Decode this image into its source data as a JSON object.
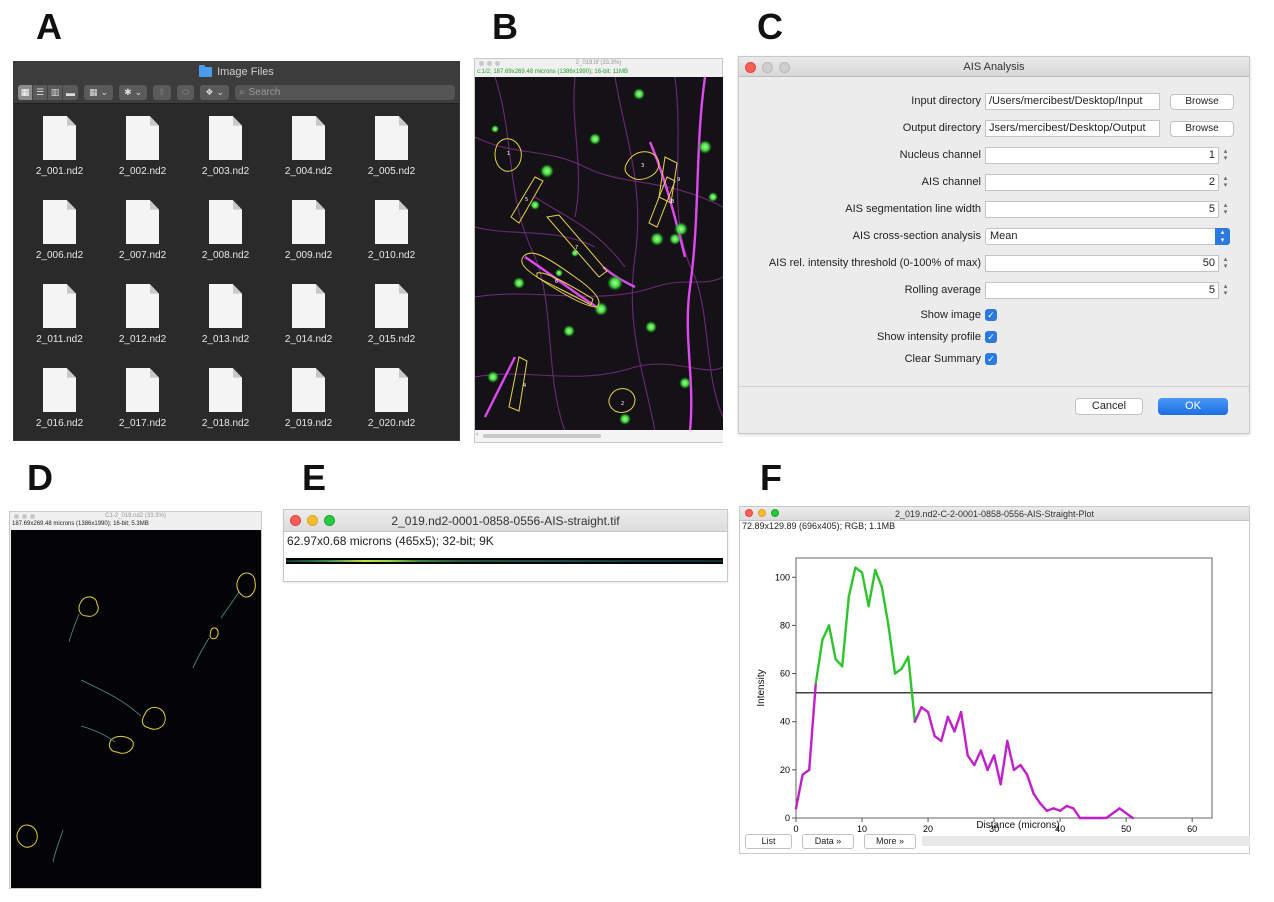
{
  "panel_letters": [
    "A",
    "B",
    "C",
    "D",
    "E",
    "F"
  ],
  "panel_a": {
    "window_title": "Image Files",
    "search_placeholder": "Search",
    "files": [
      "2_001.nd2",
      "2_002.nd2",
      "2_003.nd2",
      "2_004.nd2",
      "2_005.nd2",
      "2_006.nd2",
      "2_007.nd2",
      "2_008.nd2",
      "2_009.nd2",
      "2_010.nd2",
      "2_011.nd2",
      "2_012.nd2",
      "2_013.nd2",
      "2_014.nd2",
      "2_015.nd2",
      "2_016.nd2",
      "2_017.nd2",
      "2_018.nd2",
      "2_019.nd2",
      "2_020.nd2"
    ]
  },
  "panel_b": {
    "window_title": "2_019.tif (33.3%)",
    "info": "c:1/2; 187.69x269.48 microns (1386x1990); 16-bit; 11MB",
    "roi_labels": [
      "1",
      "2",
      "3",
      "4",
      "5",
      "6",
      "7",
      "8",
      "9"
    ]
  },
  "panel_c": {
    "window_title": "AIS Analysis",
    "input_directory_label": "Input directory",
    "input_directory_value": "/Users/mercibest/Desktop/Input",
    "output_directory_label": "Output directory",
    "output_directory_value": "Jsers/mercibest/Desktop/Output",
    "browse_label": "Browse",
    "nucleus_channel_label": "Nucleus channel",
    "nucleus_channel_value": "1",
    "ais_channel_label": "AIS channel",
    "ais_channel_value": "2",
    "line_width_label": "AIS segmentation line width",
    "line_width_value": "5",
    "cross_section_label": "AIS cross-section analysis",
    "cross_section_value": "Mean",
    "threshold_label": "AIS rel. intensity threshold (0-100% of max)",
    "threshold_value": "50",
    "rolling_label": "Rolling average",
    "rolling_value": "5",
    "show_image_label": "Show image",
    "show_profile_label": "Show intensity profile",
    "clear_summary_label": "Clear Summary",
    "cancel_label": "Cancel",
    "ok_label": "OK"
  },
  "panel_d": {
    "window_title": "C1-2_019.nd2 (33.3%)",
    "info": "187.69x269.48 microns (1386x1990); 16-bit; 5.3MB"
  },
  "panel_e": {
    "window_title": "2_019.nd2-0001-0858-0556-AIS-straight.tif",
    "info": "62.97x0.68 microns (465x5); 32-bit; 9K"
  },
  "panel_f": {
    "window_title": "2_019.nd2-C-2-0001-0858-0556-AIS-Straight-Plot",
    "info": "72.89x129.89    (696x405); RGB; 1.1MB",
    "list_label": "List",
    "data_label": "Data »",
    "more_label": "More »"
  },
  "chart_data": {
    "type": "line",
    "xlabel": "Distance (microns)",
    "ylabel": "Intensity",
    "xlim": [
      0,
      63
    ],
    "ylim": [
      0,
      108
    ],
    "xticks": [
      0,
      10,
      20,
      30,
      40,
      50,
      60
    ],
    "yticks": [
      0,
      20,
      40,
      60,
      80,
      100
    ],
    "threshold": 52,
    "colors": {
      "above": "#2ec42e",
      "below": "#c01fc9",
      "raw": "#222222",
      "threshold": "#000000"
    },
    "x": [
      0,
      1,
      2,
      3,
      4,
      5,
      6,
      7,
      8,
      9,
      10,
      11,
      12,
      13,
      14,
      15,
      16,
      17,
      18,
      19,
      20,
      21,
      22,
      23,
      24,
      25,
      26,
      27,
      28,
      29,
      30,
      31,
      32,
      33,
      34,
      35,
      36,
      37,
      38,
      39,
      40,
      41,
      42,
      43,
      44,
      45,
      46,
      47,
      48,
      49,
      50,
      51
    ],
    "values": [
      4,
      18,
      20,
      56,
      74,
      80,
      66,
      63,
      92,
      104,
      102,
      88,
      103,
      96,
      80,
      60,
      62,
      67,
      40,
      46,
      44,
      34,
      32,
      42,
      36,
      44,
      26,
      22,
      28,
      20,
      26,
      14,
      32,
      20,
      22,
      18,
      10,
      6,
      3,
      4,
      3,
      5,
      4,
      0,
      0,
      0,
      0,
      0,
      2,
      4,
      2,
      0
    ]
  }
}
